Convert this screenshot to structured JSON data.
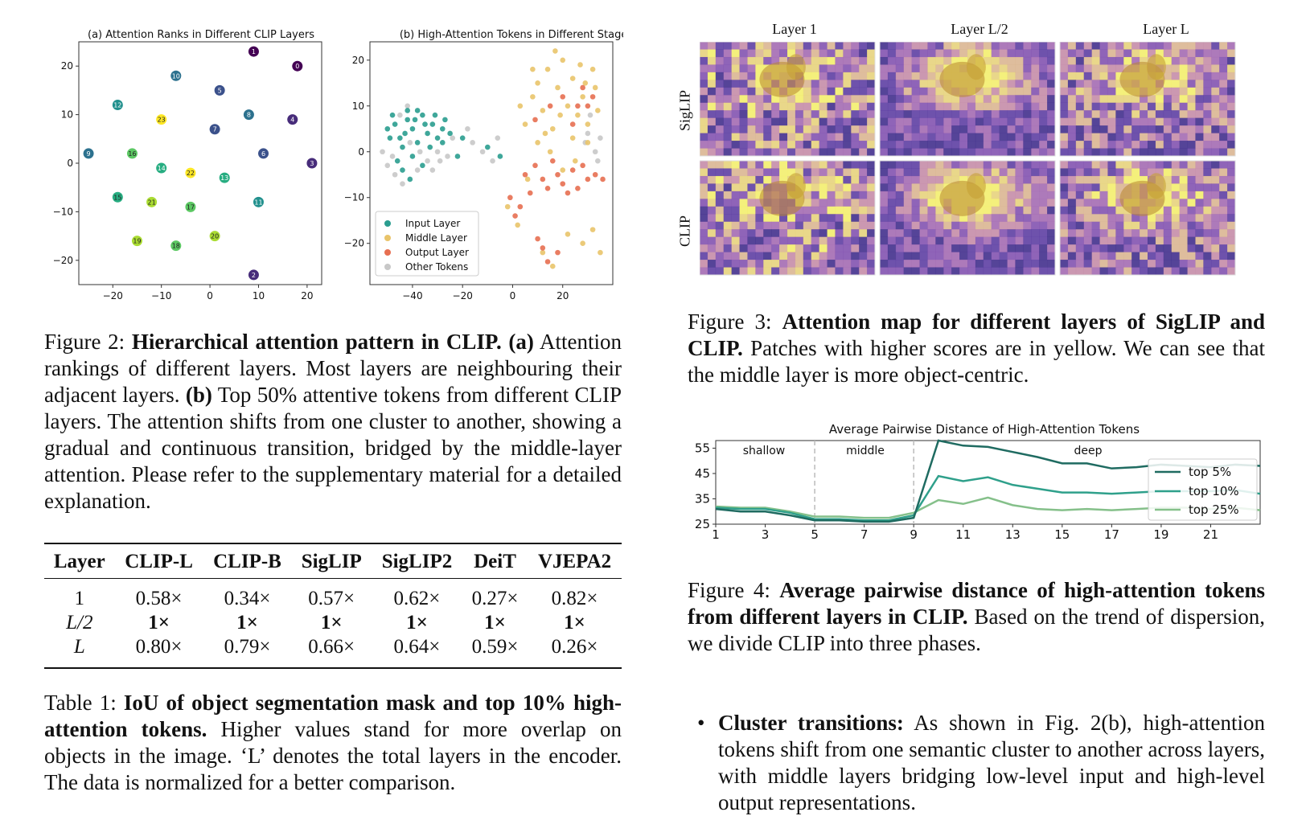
{
  "colors": {
    "teal": "#2a9d8f",
    "yellow": "#e9c46a",
    "red": "#e76f51",
    "gray": "#c8c8c8",
    "deep_line_5": "#1f6b61",
    "deep_line_10": "#2fa08b",
    "deep_line_25": "#85c08a"
  },
  "fig2": {
    "a": {
      "title": "(a) Attention Ranks in Different CLIP Layers",
      "xticks": [
        "−20",
        "−10",
        "0",
        "10",
        "20"
      ],
      "yticks": [
        "20",
        "10",
        "0",
        "−10",
        "−20"
      ]
    },
    "b": {
      "title": "(b) High-Attention Tokens in Different Stages",
      "xticks": [
        "−40",
        "−20",
        "0",
        "20"
      ],
      "yticks": [
        "20",
        "10",
        "0",
        "−10",
        "−20"
      ],
      "legend": [
        "Input Layer",
        "Middle Layer",
        "Output Layer",
        "Other Tokens"
      ]
    },
    "caption": {
      "label": "Figure 2: ",
      "bold": "Hierarchical attention pattern in CLIP.",
      "a_tag": "(a)",
      "text1": " Attention rankings of different layers. Most layers are neighbouring their adjacent layers. ",
      "b_tag": "(b)",
      "text2": " Top 50% attentive tokens from different CLIP layers. The attention shifts from one cluster to another, showing a gradual and continuous transition, bridged by the middle-layer attention. Please refer to the supplementary material for a detailed explanation."
    }
  },
  "table1": {
    "headers": [
      "Layer",
      "CLIP-L",
      "CLIP-B",
      "SigLIP",
      "SigLIP2",
      "DeiT",
      "VJEPA2"
    ],
    "rows": [
      [
        "1",
        "0.58×",
        "0.34×",
        "0.57×",
        "0.62×",
        "0.27×",
        "0.82×"
      ],
      [
        "L/2",
        "1×",
        "1×",
        "1×",
        "1×",
        "1×",
        "1×"
      ],
      [
        "L",
        "0.80×",
        "0.79×",
        "0.66×",
        "0.64×",
        "0.59×",
        "0.26×"
      ]
    ],
    "caption": {
      "label": "Table 1: ",
      "bold": "IoU of object segmentation mask and top 10% high-attention tokens.",
      "text": " Higher values stand for more overlap on objects in the image. ‘L’ denotes the total layers in the encoder. The data is normalized for a better comparison."
    }
  },
  "fig3": {
    "col_labels": [
      "Layer 1",
      "Layer L/2",
      "Layer L"
    ],
    "row_labels": [
      "SigLIP",
      "CLIP"
    ],
    "caption": {
      "label": "Figure 3: ",
      "bold": "Attention map for different layers of SigLIP and CLIP.",
      "text": " Patches with higher scores are in yellow. We can see that the middle layer is more object-centric."
    }
  },
  "fig4": {
    "caption": {
      "label": "Figure 4: ",
      "bold": "Average pairwise distance of high-attention tokens from different layers in CLIP.",
      "text": " Based on the trend of dispersion, we divide CLIP into three phases."
    }
  },
  "bullet": {
    "bold": "Cluster transitions:",
    "text": " As shown in Fig. 2(b), high-attention tokens shift from one semantic cluster to another across layers, with middle layers bridging low-level input and high-level output representations."
  },
  "chart_data": [
    {
      "type": "scatter",
      "title": "(a) Attention Ranks in Different CLIP Layers",
      "xlim": [
        -27,
        23
      ],
      "ylim": [
        -25,
        25
      ],
      "points": [
        {
          "label": "0",
          "x": 18,
          "y": 20
        },
        {
          "label": "1",
          "x": 9,
          "y": 23
        },
        {
          "label": "2",
          "x": 9,
          "y": -23
        },
        {
          "label": "3",
          "x": 21,
          "y": 0
        },
        {
          "label": "4",
          "x": 17,
          "y": 9
        },
        {
          "label": "5",
          "x": 2,
          "y": 15
        },
        {
          "label": "6",
          "x": 11,
          "y": 2
        },
        {
          "label": "7",
          "x": 1,
          "y": 7
        },
        {
          "label": "8",
          "x": 8,
          "y": 10
        },
        {
          "label": "9",
          "x": -25,
          "y": 2
        },
        {
          "label": "10",
          "x": -7,
          "y": 18
        },
        {
          "label": "11",
          "x": 10,
          "y": -8
        },
        {
          "label": "12",
          "x": -19,
          "y": 12
        },
        {
          "label": "13",
          "x": 3,
          "y": -3
        },
        {
          "label": "14",
          "x": -10,
          "y": -1
        },
        {
          "label": "15",
          "x": -19,
          "y": -7
        },
        {
          "label": "16",
          "x": -16,
          "y": 2
        },
        {
          "label": "17",
          "x": -4,
          "y": -9
        },
        {
          "label": "18",
          "x": -7,
          "y": -17
        },
        {
          "label": "19",
          "x": -15,
          "y": -16
        },
        {
          "label": "20",
          "x": 1,
          "y": -15
        },
        {
          "label": "21",
          "x": -12,
          "y": -8
        },
        {
          "label": "22",
          "x": -4,
          "y": -2
        },
        {
          "label": "23",
          "x": -10,
          "y": 9
        }
      ]
    },
    {
      "type": "scatter",
      "title": "(b) High-Attention Tokens in Different Stages",
      "xlim": [
        -57,
        40
      ],
      "ylim": [
        -29,
        24
      ],
      "legend": "lower-left",
      "series": [
        {
          "name": "Input Layer",
          "color": "#2a9d8f",
          "points": [
            [
              -50,
              5
            ],
            [
              -48,
              8
            ],
            [
              -45,
              3
            ],
            [
              -42,
              7
            ],
            [
              -40,
              5
            ],
            [
              -38,
              2
            ],
            [
              -36,
              8
            ],
            [
              -34,
              4
            ],
            [
              -32,
              6
            ],
            [
              -30,
              3
            ],
            [
              -28,
              5
            ],
            [
              -46,
              -2
            ],
            [
              -44,
              1
            ],
            [
              -40,
              -1
            ],
            [
              -36,
              -3
            ],
            [
              -33,
              1
            ],
            [
              -28,
              2
            ],
            [
              -25,
              4
            ],
            [
              -22,
              -1
            ],
            [
              -49,
              3
            ],
            [
              -42,
              9
            ],
            [
              -38,
              9
            ],
            [
              -35,
              6
            ],
            [
              -31,
              8
            ],
            [
              -27,
              7
            ],
            [
              -20,
              3
            ],
            [
              -47,
              6
            ],
            [
              -43,
              4
            ],
            [
              -39,
              7
            ],
            [
              -44,
              -4
            ],
            [
              -41,
              -6
            ],
            [
              -10,
              1
            ],
            [
              -5,
              -1
            ]
          ]
        },
        {
          "name": "Middle Layer",
          "color": "#e9c46a",
          "points": [
            [
              3,
              10
            ],
            [
              5,
              6
            ],
            [
              8,
              12
            ],
            [
              10,
              15
            ],
            [
              12,
              9
            ],
            [
              14,
              18
            ],
            [
              16,
              5
            ],
            [
              18,
              14
            ],
            [
              20,
              20
            ],
            [
              22,
              10
            ],
            [
              24,
              16
            ],
            [
              26,
              8
            ],
            [
              28,
              12
            ],
            [
              30,
              6
            ],
            [
              32,
              18
            ],
            [
              34,
              9
            ],
            [
              10,
              2
            ],
            [
              15,
              0
            ],
            [
              20,
              -4
            ],
            [
              25,
              -2
            ],
            [
              30,
              2
            ],
            [
              -2,
              -12
            ],
            [
              2,
              -16
            ],
            [
              12,
              -22
            ],
            [
              16,
              -25
            ],
            [
              22,
              -18
            ],
            [
              28,
              -20
            ],
            [
              32,
              -17
            ],
            [
              35,
              -22
            ],
            [
              6,
              -6
            ],
            [
              13,
              4
            ],
            [
              19,
              8
            ],
            [
              24,
              3
            ],
            [
              29,
              15
            ],
            [
              8,
              18
            ],
            [
              17,
              22
            ],
            [
              27,
              19
            ],
            [
              33,
              14
            ]
          ]
        },
        {
          "name": "Output Layer",
          "color": "#e76f51",
          "points": [
            [
              5,
              -5
            ],
            [
              7,
              -9
            ],
            [
              3,
              -12
            ],
            [
              1,
              -14
            ],
            [
              -1,
              -10
            ],
            [
              9,
              -3
            ],
            [
              12,
              -6
            ],
            [
              14,
              -8
            ],
            [
              16,
              -2
            ],
            [
              18,
              -5
            ],
            [
              20,
              -7
            ],
            [
              22,
              -9
            ],
            [
              24,
              -4
            ],
            [
              26,
              -8
            ],
            [
              28,
              -3
            ],
            [
              30,
              -6
            ],
            [
              33,
              -5
            ],
            [
              36,
              -6
            ],
            [
              12,
              -21
            ],
            [
              14,
              -24
            ],
            [
              10,
              -19
            ],
            [
              18,
              -22
            ],
            [
              24,
              6
            ],
            [
              26,
              10
            ],
            [
              28,
              14
            ],
            [
              30,
              10
            ],
            [
              32,
              12
            ],
            [
              20,
              12
            ],
            [
              15,
              10
            ],
            [
              9,
              7
            ]
          ]
        },
        {
          "name": "Other Tokens",
          "color": "#c8c8c8",
          "points": [
            [
              -52,
              0
            ],
            [
              -50,
              -3
            ],
            [
              -47,
              -5
            ],
            [
              -44,
              -7
            ],
            [
              -45,
              8
            ],
            [
              -42,
              10
            ],
            [
              -38,
              -4
            ],
            [
              -34,
              -2
            ],
            [
              -30,
              0
            ],
            [
              -26,
              -1
            ],
            [
              -24,
              3
            ],
            [
              -18,
              5
            ],
            [
              -16,
              2
            ],
            [
              -12,
              0
            ],
            [
              -8,
              -2
            ],
            [
              -6,
              3
            ],
            [
              30,
              4
            ],
            [
              33,
              0
            ],
            [
              35,
              3
            ],
            [
              34,
              -2
            ],
            [
              31,
              8
            ],
            [
              29,
              2
            ],
            [
              -48,
              -1
            ],
            [
              -41,
              2
            ],
            [
              -37,
              0
            ],
            [
              -32,
              -4
            ],
            [
              -29,
              -2
            ]
          ]
        }
      ]
    },
    {
      "type": "line",
      "title": "Average Pairwise Distance of High-Attention Tokens",
      "xticks": [
        1,
        3,
        5,
        7,
        9,
        11,
        13,
        15,
        17,
        19,
        21
      ],
      "ylim": [
        25,
        58
      ],
      "yticks": [
        25,
        35,
        45,
        55
      ],
      "xlim": [
        1,
        23
      ],
      "annotations": [
        "shallow",
        "middle",
        "deep"
      ],
      "dividers": [
        5,
        9
      ],
      "legend": "upper-right",
      "x": [
        1,
        2,
        3,
        4,
        5,
        6,
        7,
        8,
        9,
        10,
        11,
        12,
        13,
        14,
        15,
        16,
        17,
        18,
        19,
        20,
        21,
        22,
        23
      ],
      "series": [
        {
          "name": "top 5%",
          "color": "#1f6b61",
          "values": [
            31,
            30,
            30,
            28.5,
            26.5,
            26.5,
            26,
            26,
            27.5,
            58,
            56,
            55.5,
            53.5,
            51.5,
            49,
            49,
            47,
            47.5,
            48.5,
            48,
            47.5,
            48.5,
            48
          ]
        },
        {
          "name": "top 10%",
          "color": "#2fa08b",
          "values": [
            31.5,
            31,
            31,
            29.5,
            27,
            27,
            26.5,
            26.5,
            28.5,
            44,
            42,
            43.5,
            40.5,
            39,
            37.5,
            37.5,
            37,
            37.5,
            38,
            38,
            38,
            38.5,
            37
          ]
        },
        {
          "name": "top 25%",
          "color": "#85c08a",
          "values": [
            32,
            31.5,
            31.5,
            30,
            28,
            28,
            27.5,
            27.5,
            29.5,
            34.5,
            33,
            35.5,
            32.5,
            31,
            30.5,
            31,
            30.5,
            31,
            31.5,
            31.5,
            31,
            31.5,
            30.5
          ]
        }
      ]
    }
  ]
}
